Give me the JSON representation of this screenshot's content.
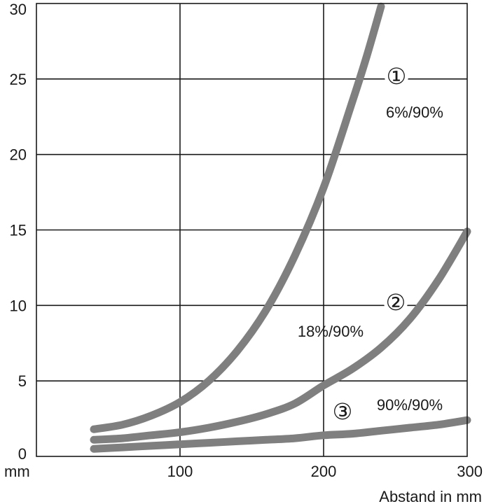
{
  "chart_data": {
    "type": "line",
    "xlabel": "Abstand in mm",
    "ylabel": "mm",
    "xlim": [
      0,
      300
    ],
    "ylim": [
      0,
      30
    ],
    "x_ticks": [
      "100",
      "200",
      "300"
    ],
    "y_ticks": [
      "0",
      "5",
      "10",
      "15",
      "20",
      "25",
      "30"
    ],
    "grid": true,
    "line_color": "#7f7f7f",
    "series": [
      {
        "marker": "①",
        "label": "6%/90%",
        "x": [
          40,
          60,
          80,
          100,
          120,
          140,
          160,
          180,
          200,
          220,
          230,
          240
        ],
        "y": [
          1.8,
          2.1,
          2.7,
          3.6,
          5.0,
          7.0,
          9.7,
          13.3,
          17.8,
          23.5,
          26.5,
          29.8
        ]
      },
      {
        "marker": "②",
        "label": "18%/90%",
        "x": [
          40,
          60,
          80,
          100,
          120,
          140,
          160,
          180,
          200,
          220,
          240,
          260,
          280,
          300
        ],
        "y": [
          1.1,
          1.2,
          1.4,
          1.6,
          1.9,
          2.3,
          2.8,
          3.5,
          4.7,
          5.8,
          7.2,
          9.1,
          11.7,
          14.9
        ]
      },
      {
        "marker": "③",
        "label": "90%/90%",
        "x": [
          40,
          60,
          80,
          100,
          120,
          140,
          160,
          180,
          200,
          220,
          240,
          260,
          280,
          300
        ],
        "y": [
          0.5,
          0.6,
          0.7,
          0.8,
          0.9,
          1.0,
          1.1,
          1.2,
          1.4,
          1.5,
          1.7,
          1.9,
          2.1,
          2.4
        ]
      }
    ]
  }
}
